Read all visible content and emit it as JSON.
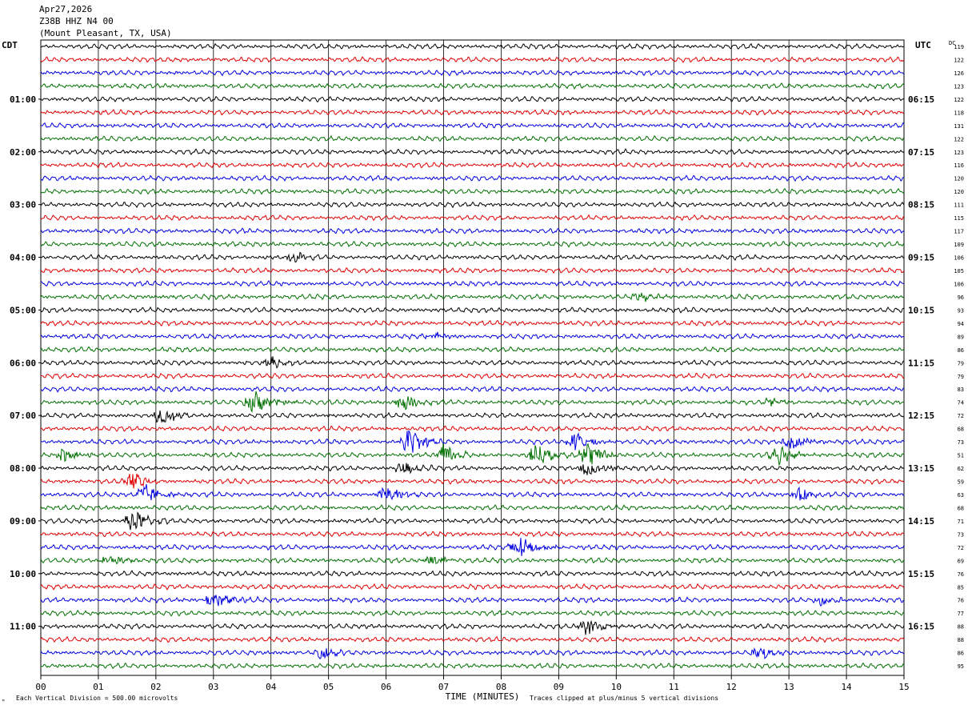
{
  "header": {
    "date": "Apr27,2026",
    "station": "Z38B HHZ N4 00",
    "location": "(Mount Pleasant, TX, USA)"
  },
  "left_tz": "CDT",
  "right_tz": "UTC",
  "dc_label": "DC",
  "left_hours": [
    "01:00",
    "02:00",
    "03:00",
    "04:00",
    "05:00",
    "06:00",
    "07:00",
    "08:00",
    "09:00",
    "10:00",
    "11:00"
  ],
  "right_hours": [
    "06:15",
    "07:15",
    "08:15",
    "09:15",
    "10:15",
    "11:15",
    "12:15",
    "13:15",
    "14:15",
    "15:15",
    "16:15"
  ],
  "footer": {
    "scale": "Each Vertical Division =  500.00 microvolts",
    "clip": "Traces clipped at plus/minus 5 vertical divisions",
    "mark": "ᴹ"
  },
  "chart_data": {
    "type": "line",
    "xlabel": "TIME (MINUTES)",
    "x_ticks": [
      "00",
      "01",
      "02",
      "03",
      "04",
      "05",
      "06",
      "07",
      "08",
      "09",
      "10",
      "11",
      "12",
      "13",
      "14",
      "15"
    ],
    "xlim": [
      0,
      15
    ],
    "trace_colors": [
      "#000000",
      "#e00000",
      "#0000e0",
      "#007000"
    ],
    "dc_offsets": [
      119,
      122,
      126,
      123,
      122,
      118,
      131,
      122,
      123,
      116,
      120,
      120,
      111,
      115,
      117,
      109,
      106,
      105,
      106,
      96,
      93,
      94,
      89,
      86,
      79,
      79,
      83,
      74,
      72,
      68,
      73,
      51,
      62,
      59,
      63,
      68,
      71,
      73,
      72,
      69,
      76,
      85,
      76,
      77,
      88,
      88,
      86,
      95
    ],
    "events": [
      {
        "line": 16,
        "minute": 4.4,
        "amp": 7
      },
      {
        "line": 19,
        "minute": 10.4,
        "amp": 5
      },
      {
        "line": 22,
        "minute": 6.8,
        "amp": 5
      },
      {
        "line": 24,
        "minute": 4.0,
        "amp": 7
      },
      {
        "line": 27,
        "minute": 3.7,
        "amp": 16
      },
      {
        "line": 27,
        "minute": 6.3,
        "amp": 10
      },
      {
        "line": 27,
        "minute": 12.7,
        "amp": 5
      },
      {
        "line": 28,
        "minute": 2.1,
        "amp": 11
      },
      {
        "line": 30,
        "minute": 6.4,
        "amp": 16
      },
      {
        "line": 30,
        "minute": 9.3,
        "amp": 14
      },
      {
        "line": 30,
        "minute": 13.0,
        "amp": 12
      },
      {
        "line": 31,
        "minute": 0.4,
        "amp": 9
      },
      {
        "line": 31,
        "minute": 7.0,
        "amp": 14
      },
      {
        "line": 31,
        "minute": 8.6,
        "amp": 16
      },
      {
        "line": 31,
        "minute": 9.5,
        "amp": 16
      },
      {
        "line": 31,
        "minute": 12.8,
        "amp": 13
      },
      {
        "line": 32,
        "minute": 6.3,
        "amp": 9
      },
      {
        "line": 32,
        "minute": 9.5,
        "amp": 10
      },
      {
        "line": 33,
        "minute": 1.6,
        "amp": 11
      },
      {
        "line": 34,
        "minute": 1.8,
        "amp": 13
      },
      {
        "line": 34,
        "minute": 6.0,
        "amp": 13
      },
      {
        "line": 34,
        "minute": 13.2,
        "amp": 9
      },
      {
        "line": 36,
        "minute": 1.6,
        "amp": 16
      },
      {
        "line": 38,
        "minute": 8.3,
        "amp": 18
      },
      {
        "line": 39,
        "minute": 1.2,
        "amp": 7
      },
      {
        "line": 39,
        "minute": 6.8,
        "amp": 7
      },
      {
        "line": 42,
        "minute": 3.0,
        "amp": 13
      },
      {
        "line": 42,
        "minute": 13.6,
        "amp": 7
      },
      {
        "line": 44,
        "minute": 9.5,
        "amp": 12
      },
      {
        "line": 46,
        "minute": 4.9,
        "amp": 8
      },
      {
        "line": 46,
        "minute": 12.5,
        "amp": 8
      }
    ]
  }
}
